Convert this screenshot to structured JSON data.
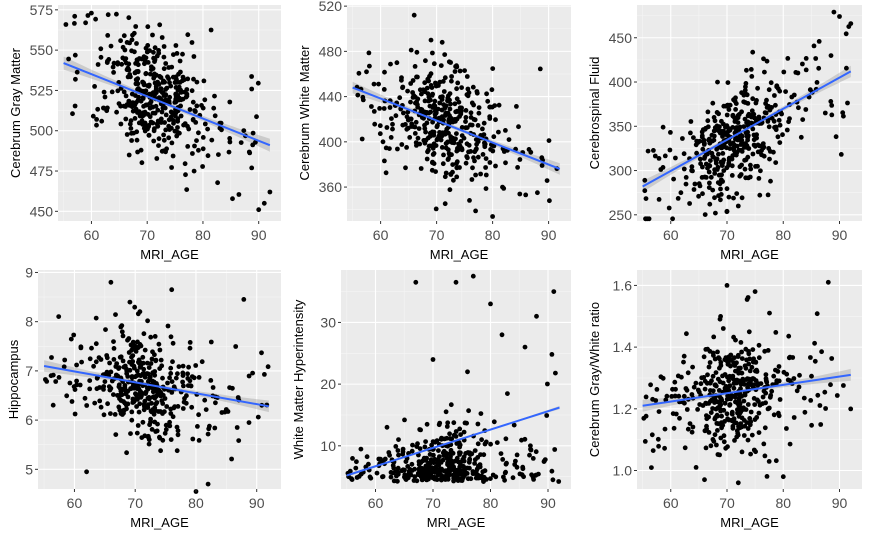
{
  "chart_data": [
    {
      "type": "scatter",
      "seed": 11,
      "n": 420,
      "title": "",
      "xlabel": "MRI_AGE",
      "ylabel": "Cerebrum Gray Matter",
      "xlim": [
        54,
        94
      ],
      "ylim": [
        444,
        578
      ],
      "xticks": [
        60,
        70,
        80,
        90
      ],
      "yticks": [
        450,
        475,
        500,
        525,
        550,
        575
      ],
      "trend": {
        "x": [
          55,
          92
        ],
        "y": [
          542,
          491
        ]
      },
      "trend_color": "#3366ff",
      "noise_sd": 19,
      "outliers": [
        [
          57,
          571
        ],
        [
          60,
          573
        ],
        [
          63,
          572
        ],
        [
          66,
          544
        ],
        [
          90,
          451
        ],
        [
          91,
          455
        ],
        [
          92,
          462
        ]
      ]
    },
    {
      "type": "scatter",
      "seed": 23,
      "n": 420,
      "title": "",
      "xlabel": "MRI_AGE",
      "ylabel": "Cerebrum White Matter",
      "xlim": [
        54,
        94
      ],
      "ylim": [
        330,
        521
      ],
      "xticks": [
        60,
        70,
        80,
        90
      ],
      "yticks": [
        360,
        400,
        440,
        480,
        520
      ],
      "trend": {
        "x": [
          55,
          92
        ],
        "y": [
          448,
          376
        ]
      },
      "trend_color": "#3366ff",
      "noise_sd": 24,
      "outliers": [
        [
          66,
          512
        ],
        [
          69,
          490
        ],
        [
          71,
          488
        ],
        [
          80,
          334
        ],
        [
          88,
          355
        ]
      ]
    },
    {
      "type": "scatter",
      "seed": 37,
      "n": 420,
      "title": "",
      "xlabel": "MRI_AGE",
      "ylabel": "Cerebrospinal Fluid",
      "xlim": [
        54,
        94
      ],
      "ylim": [
        243,
        487
      ],
      "xticks": [
        60,
        70,
        80,
        90
      ],
      "yticks": [
        250,
        300,
        350,
        400,
        450
      ],
      "trend": {
        "x": [
          55,
          92
        ],
        "y": [
          282,
          412
        ]
      },
      "trend_color": "#3366ff",
      "noise_sd": 30,
      "outliers": [
        [
          89,
          479
        ],
        [
          90,
          474
        ],
        [
          92,
          466
        ],
        [
          70,
          254
        ],
        [
          72,
          260
        ]
      ]
    },
    {
      "type": "scatter",
      "seed": 41,
      "n": 420,
      "title": "",
      "xlabel": "MRI_AGE",
      "ylabel": "Hippocampus",
      "xlim": [
        54,
        94
      ],
      "ylim": [
        4.6,
        9.05
      ],
      "xticks": [
        60,
        70,
        80,
        90
      ],
      "yticks": [
        5,
        6,
        7,
        8,
        9
      ],
      "trend": {
        "x": [
          55,
          92
        ],
        "y": [
          7.1,
          6.28
        ]
      },
      "trend_color": "#3366ff",
      "noise_sd": 0.55,
      "outliers": [
        [
          66,
          8.8
        ],
        [
          76,
          8.65
        ],
        [
          62,
          4.95
        ],
        [
          80,
          4.55
        ],
        [
          82,
          4.7
        ]
      ]
    },
    {
      "type": "scatter",
      "seed": 53,
      "n": 420,
      "title": "",
      "xlabel": "MRI_AGE",
      "ylabel": "White Matter Hyperintensity",
      "xlim": [
        54,
        94
      ],
      "ylim": [
        3,
        38.5
      ],
      "xticks": [
        60,
        70,
        80,
        90
      ],
      "yticks": [
        10,
        20,
        30
      ],
      "trend": {
        "x": [
          55,
          92
        ],
        "y": [
          5.2,
          16.2
        ]
      },
      "trend_color": "#3366ff",
      "noise_sd": 1.2,
      "skew": true,
      "outliers": [
        [
          67,
          36.5
        ],
        [
          74,
          36.5
        ],
        [
          77,
          37.5
        ],
        [
          91,
          35
        ],
        [
          80,
          33
        ],
        [
          88,
          31
        ],
        [
          82,
          28
        ],
        [
          70,
          24
        ],
        [
          76,
          22
        ],
        [
          86,
          26
        ],
        [
          62,
          13
        ],
        [
          64,
          11
        ]
      ]
    },
    {
      "type": "scatter",
      "seed": 67,
      "n": 420,
      "title": "",
      "xlabel": "MRI_AGE",
      "ylabel": "Cerebrum Gray/White ratio",
      "xlim": [
        54,
        94
      ],
      "ylim": [
        0.94,
        1.65
      ],
      "xticks": [
        60,
        70,
        80,
        90
      ],
      "yticks": [
        1.0,
        1.2,
        1.4,
        1.6
      ],
      "trend": {
        "x": [
          55,
          92
        ],
        "y": [
          1.21,
          1.31
        ]
      },
      "trend_color": "#3366ff",
      "noise_sd": 0.09,
      "outliers": [
        [
          70,
          1.6
        ],
        [
          75,
          1.58
        ],
        [
          88,
          1.61
        ],
        [
          66,
          0.97
        ],
        [
          72,
          0.96
        ],
        [
          80,
          0.98
        ]
      ]
    }
  ]
}
